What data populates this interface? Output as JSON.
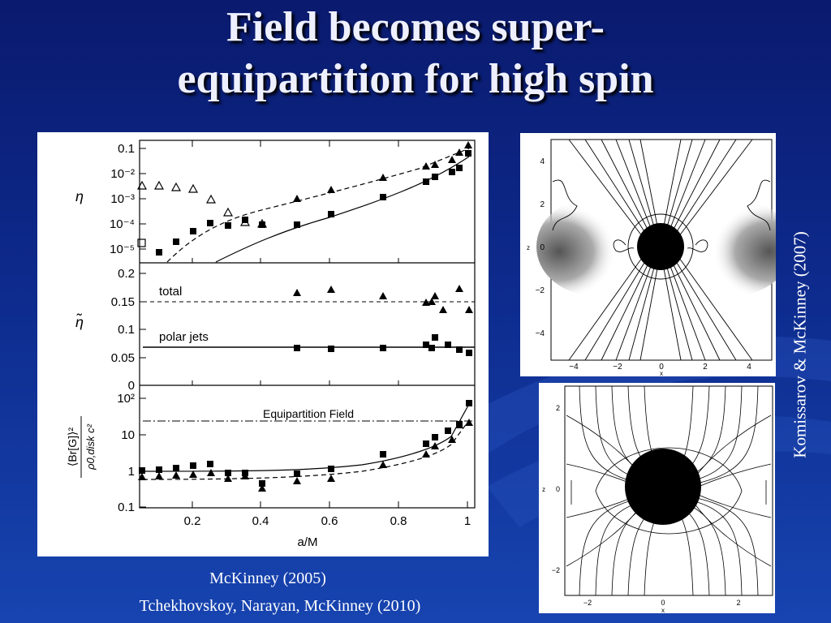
{
  "slide": {
    "title_line1": "Field becomes super-",
    "title_line2": "equipartition for high spin",
    "caption_mckinney": "McKinney (2005)",
    "caption_tnm": "Tchekhovskoy, Narayan, McKinney (2010)",
    "caption_komissarov": "Komissarov & McKinney (2007)"
  },
  "figure_left": {
    "xlabel": "a/M",
    "x_ticks": [
      "0.2",
      "0.4",
      "0.6",
      "0.8",
      "1"
    ],
    "top": {
      "ylabel": "η",
      "y_ticks": [
        "0.1",
        "10⁻²",
        "10⁻³",
        "10⁻⁴",
        "10⁻⁵"
      ]
    },
    "mid": {
      "ylabel": "η̃",
      "y_ticks": [
        "0.2",
        "0.15",
        "0.1",
        "0.05",
        "0"
      ],
      "label_total": "total",
      "label_polar": "polar jets"
    },
    "bot": {
      "ylabel_num": "⟨Br[G]⟩²",
      "ylabel_den": "ρ0,disk c²",
      "y_ticks": [
        "10²",
        "10",
        "1",
        "0.1"
      ],
      "annotation": "Equipartition Field"
    }
  },
  "figure_top_right": {
    "x_ticks": [
      "−4",
      "−2",
      "0",
      "2",
      "4"
    ],
    "y_ticks": [
      "4",
      "2",
      "0",
      "−2",
      "−4"
    ],
    "xlabel": "x",
    "ylabel": "z"
  },
  "figure_bottom_right": {
    "x_ticks": [
      "−2",
      "0",
      "2"
    ],
    "y_ticks": [
      "2",
      "0",
      "−2"
    ],
    "xlabel": "x",
    "ylabel": "z"
  },
  "colors": {
    "background_top": "#0a1a6e",
    "background_bottom": "#1744b0",
    "title": "#eef0ff"
  }
}
